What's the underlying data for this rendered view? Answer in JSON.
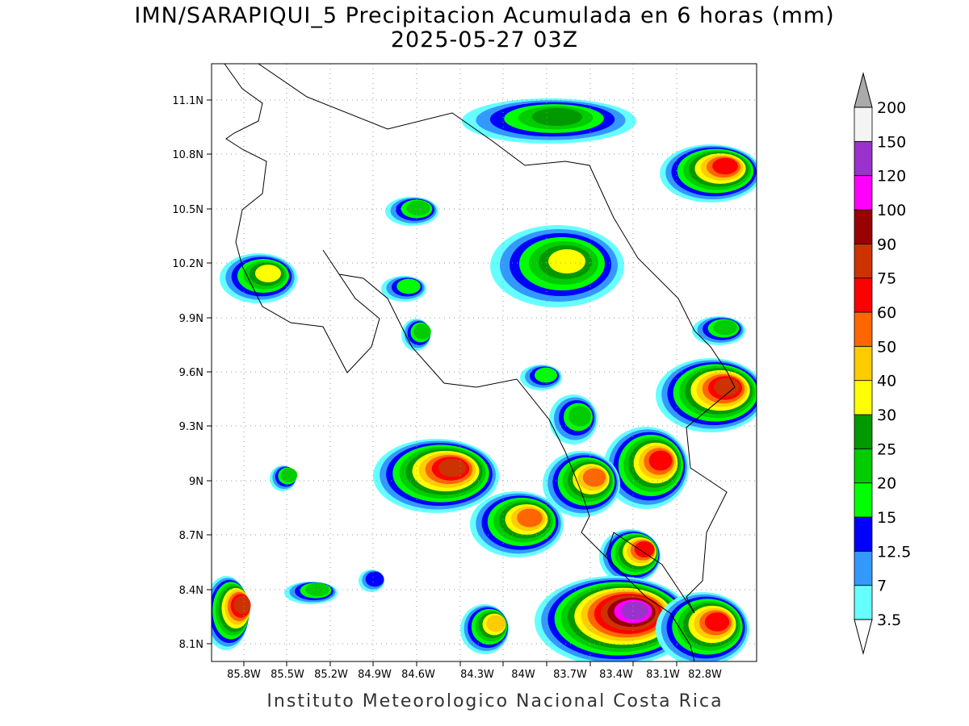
{
  "title": "IMN/SARAPIQUI_5 Precipitacion Acumulada en 6 horas (mm)",
  "subtitle": "2025-05-27 03Z",
  "lat_labels": [
    "11.1N",
    "10.8N",
    "10.5N",
    "10.2N",
    "9.9N",
    "9.6N",
    "9.3N",
    "9N",
    "8.7N",
    "8.4N",
    "8.1N"
  ],
  "lon_labels": [
    "85.8W",
    "85.5W",
    "85.2W",
    "84.9W",
    "84.6W",
    "84.3W",
    "84W",
    "83.7W",
    "83.4W",
    "83.1W",
    "82.8W"
  ],
  "colorbar": {
    "levels": [
      "3.5",
      "7",
      "12.5",
      "15",
      "20",
      "25",
      "30",
      "40",
      "50",
      "60",
      "75",
      "90",
      "100",
      "120",
      "150",
      "200"
    ],
    "colors": [
      "#66ffff",
      "#3399ff",
      "#0000ff",
      "#00ff00",
      "#00cc00",
      "#009900",
      "#ffff00",
      "#ffcc00",
      "#ff6600",
      "#ff0000",
      "#cc3300",
      "#990000",
      "#ff00ff",
      "#9933cc",
      "#f4f4f4"
    ],
    "over_color": "#aaaaaa",
    "under_color": "#ffffff"
  },
  "footer": "Instituto Meteorologico Nacional Costa Rica"
}
